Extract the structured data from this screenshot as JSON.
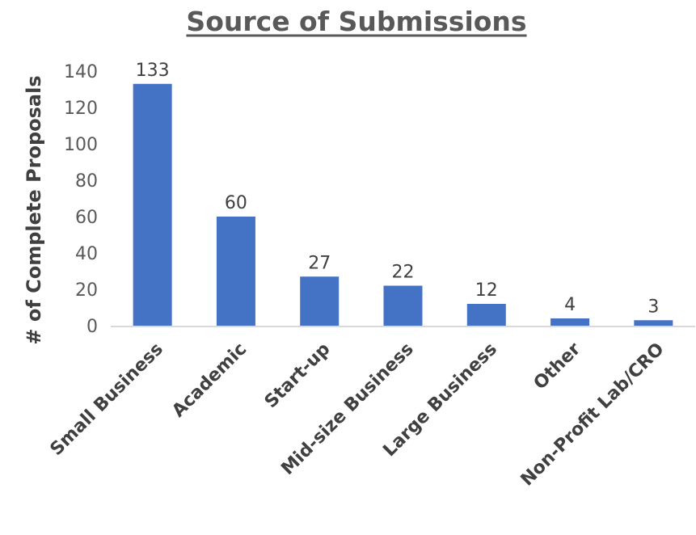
{
  "chart_data": {
    "type": "bar",
    "title": "Source of Submissions",
    "xlabel": "",
    "ylabel": "# of Complete Proposals",
    "categories": [
      "Small Business",
      "Academic",
      "Start-up",
      "Mid-size Business",
      "Large Business",
      "Other",
      "Non-Profit Lab/CRO"
    ],
    "values": [
      133,
      60,
      27,
      22,
      12,
      4,
      3
    ],
    "data_labels": [
      "133",
      "60",
      "27",
      "22",
      "12",
      "4",
      "3"
    ],
    "ylim": [
      0,
      140
    ],
    "yticks": [
      "0",
      "20",
      "40",
      "60",
      "80",
      "100",
      "120",
      "140"
    ],
    "bar_color": "#4472C4",
    "grid": false,
    "legend": "none"
  }
}
